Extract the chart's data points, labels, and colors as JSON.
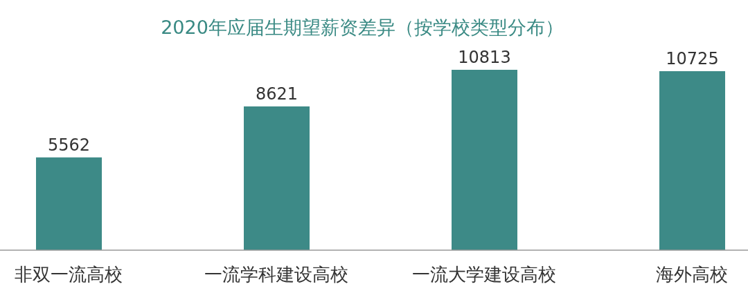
{
  "chart_data": {
    "type": "bar",
    "title": "2020年应届生期望薪资差异（按学校类型分布）",
    "categories": [
      "非双一流高校",
      "一流学科建设高校",
      "一流大学建设高校",
      "海外高校"
    ],
    "values": [
      5562,
      8621,
      10813,
      10725
    ],
    "color": "#3d8a87",
    "data_labels": true
  }
}
